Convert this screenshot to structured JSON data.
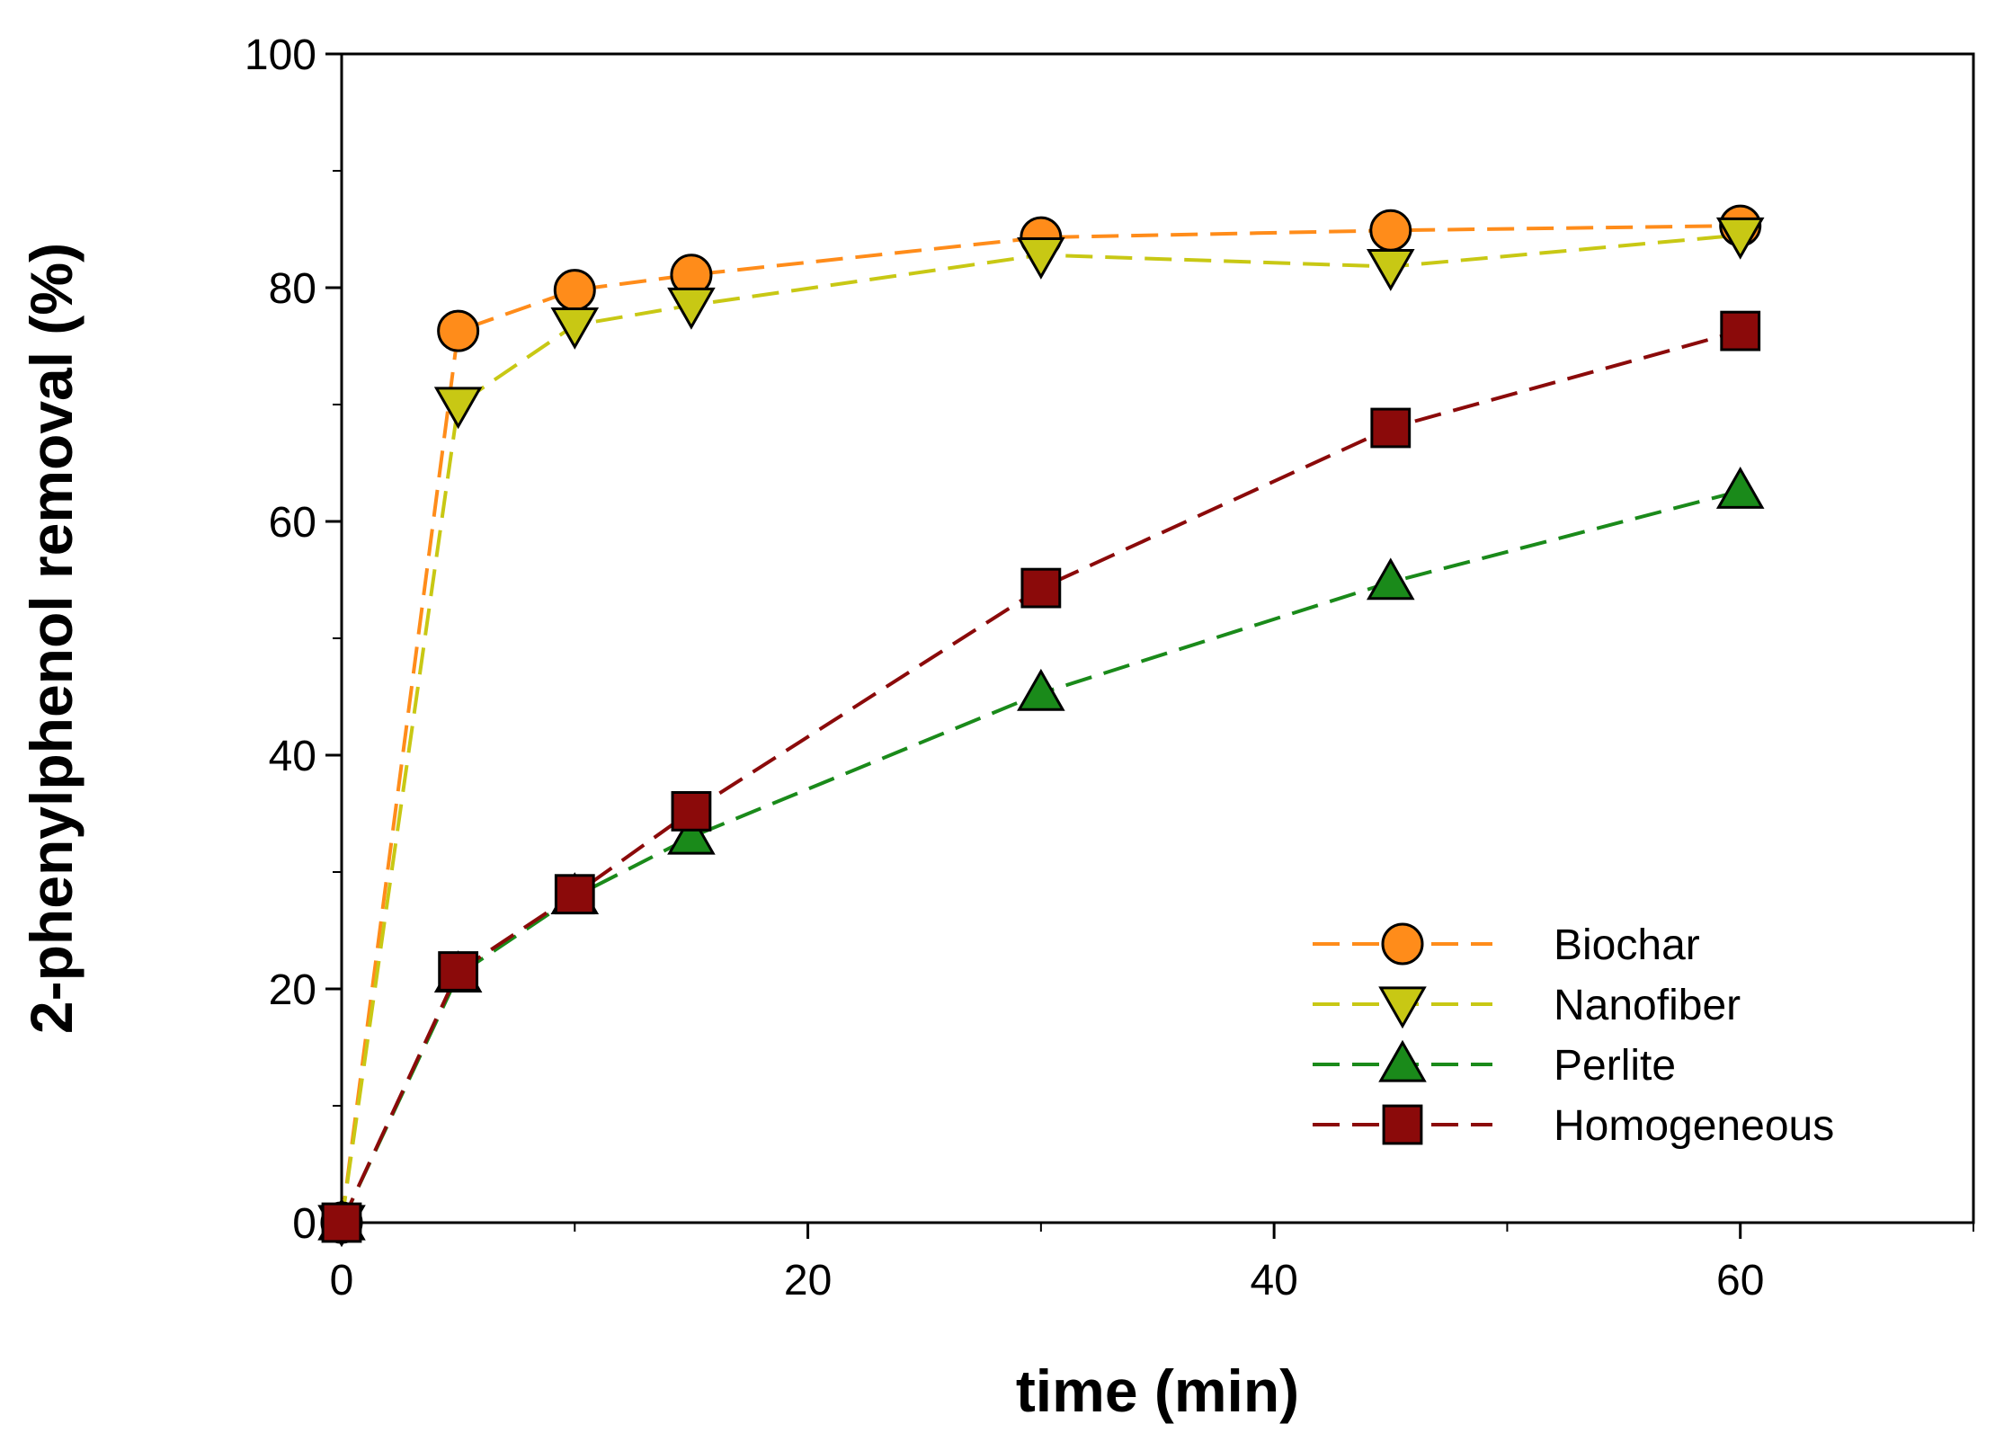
{
  "chart_data": {
    "type": "line",
    "title": "",
    "xlabel": "time (min)",
    "ylabel": "2-phenylphenol removal (%)",
    "xlim": [
      0,
      70
    ],
    "ylim": [
      0,
      100
    ],
    "xticks": [
      0,
      20,
      40,
      60
    ],
    "yticks": [
      0,
      20,
      40,
      60,
      80,
      100
    ],
    "xtick_labels": [
      "0",
      "20",
      "40",
      "60"
    ],
    "ytick_labels": [
      "0",
      "20",
      "40",
      "60",
      "80",
      "100"
    ],
    "grid": false,
    "legend_position": "bottom-right",
    "x": [
      0,
      5,
      10,
      15,
      30,
      45,
      60
    ],
    "series": [
      {
        "name": "Biochar",
        "marker": "circle",
        "color": "#FF8C1A",
        "values": [
          0,
          76.3,
          79.8,
          81.1,
          84.3,
          84.9,
          85.3
        ]
      },
      {
        "name": "Nanofiber",
        "marker": "triangle-down",
        "color": "#C8C814",
        "values": [
          0,
          70.0,
          76.8,
          78.5,
          82.8,
          81.8,
          84.5
        ]
      },
      {
        "name": "Perlite",
        "marker": "triangle-up",
        "color": "#1A8A1A",
        "values": [
          0,
          21.2,
          27.9,
          33.0,
          45.3,
          54.8,
          62.6
        ]
      },
      {
        "name": "Homogeneous",
        "marker": "square",
        "color": "#8B0A0A",
        "values": [
          0,
          21.5,
          28.1,
          35.2,
          54.3,
          68.0,
          76.3
        ]
      }
    ]
  }
}
